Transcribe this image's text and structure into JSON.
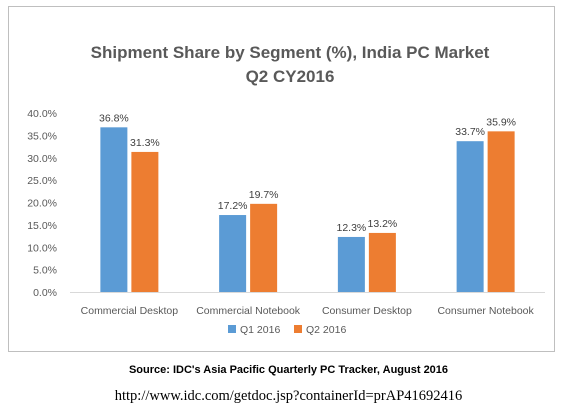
{
  "chart_data": {
    "type": "bar",
    "title_line1": "Shipment Share by Segment (%), India PC Market",
    "title_line2": "Q2 CY2016",
    "categories": [
      "Commercial Desktop",
      "Commercial Notebook",
      "Consumer Desktop",
      "Consumer Notebook"
    ],
    "series": [
      {
        "name": "Q1 2016",
        "values": [
          36.8,
          17.2,
          12.3,
          33.7
        ],
        "labels": [
          "36.8%",
          "17.2%",
          "12.3%",
          "33.7%"
        ],
        "color": "#5b9bd5"
      },
      {
        "name": "Q2 2016",
        "values": [
          31.3,
          19.7,
          13.2,
          35.9
        ],
        "labels": [
          "31.3%",
          "19.7%",
          "13.2%",
          "35.9%"
        ],
        "color": "#ed7d31"
      }
    ],
    "yticks": [
      0,
      5,
      10,
      15,
      20,
      25,
      30,
      35,
      40
    ],
    "ytick_labels": [
      "0.0%",
      "5.0%",
      "10.0%",
      "15.0%",
      "20.0%",
      "25.0%",
      "30.0%",
      "35.0%",
      "40.0%"
    ],
    "ylim": [
      0,
      40
    ],
    "grid": false,
    "legend_position": "bottom"
  },
  "source_text": "Source: IDC's Asia Pacific Quarterly PC Tracker, August 2016",
  "url_text": "http://www.idc.com/getdoc.jsp?containerId=prAP41692416"
}
